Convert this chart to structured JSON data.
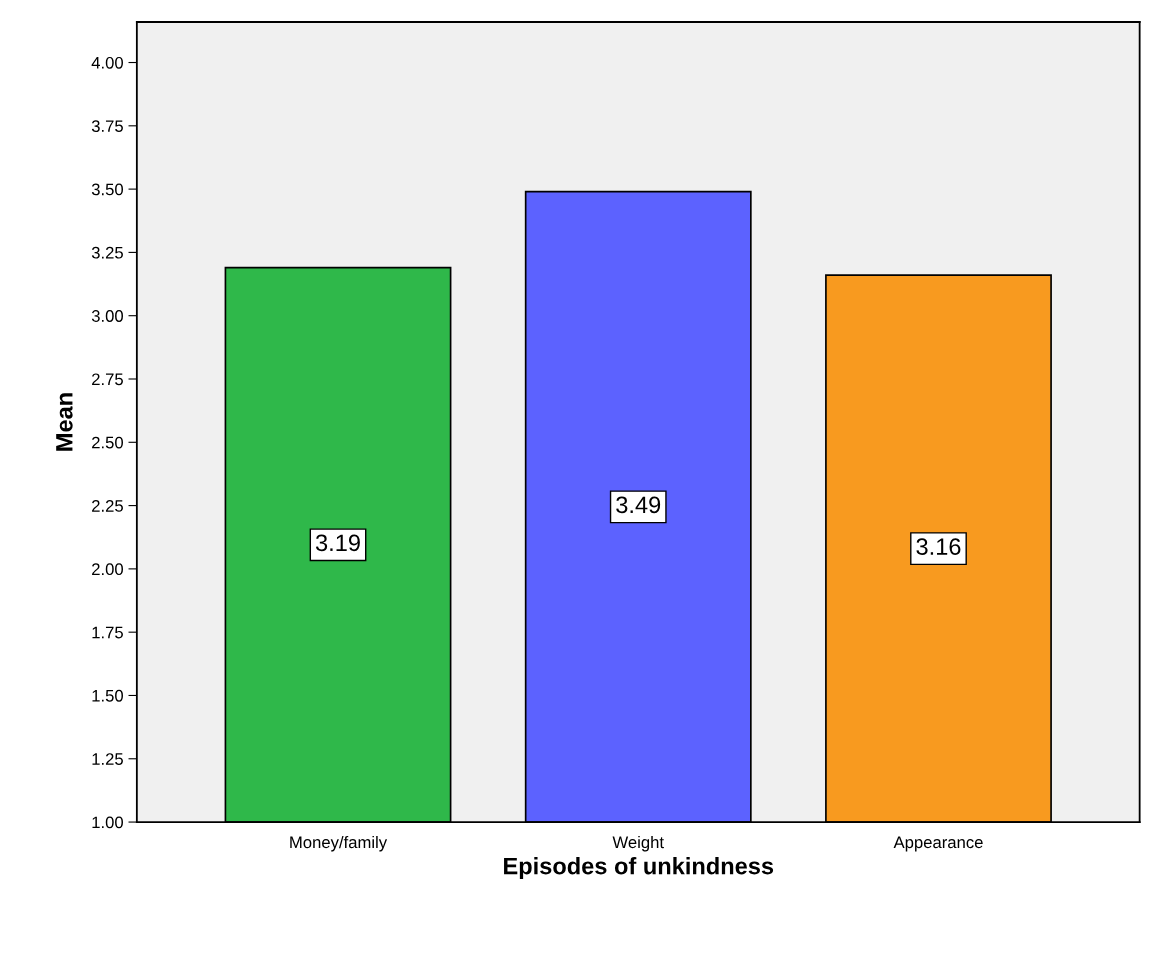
{
  "chart_data": {
    "type": "bar",
    "xlabel": "Episodes of unkindness",
    "ylabel": "Mean",
    "categories": [
      "Money/family",
      "Weight",
      "Appearance"
    ],
    "values": [
      3.19,
      3.49,
      3.16
    ],
    "colors": [
      "#2fb84a",
      "#5c62ff",
      "#f89a1f"
    ],
    "ylim": [
      1,
      4.16
    ],
    "yticks": [
      {
        "value": 1,
        "label": "1.00"
      },
      {
        "value": 1.25,
        "label": "1.25"
      },
      {
        "value": 1.5,
        "label": "1.50"
      },
      {
        "value": 1.75,
        "label": "1.75"
      },
      {
        "value": 2,
        "label": "2.00"
      },
      {
        "value": 2.25,
        "label": "2.25"
      },
      {
        "value": 2.5,
        "label": "2.50"
      },
      {
        "value": 2.75,
        "label": "2.75"
      },
      {
        "value": 3,
        "label": "3.00"
      },
      {
        "value": 3.25,
        "label": "3.25"
      },
      {
        "value": 3.5,
        "label": "3.50"
      },
      {
        "value": 3.75,
        "label": "3.75"
      },
      {
        "value": 4,
        "label": "4.00"
      }
    ],
    "data_labels": true,
    "grid": false
  }
}
